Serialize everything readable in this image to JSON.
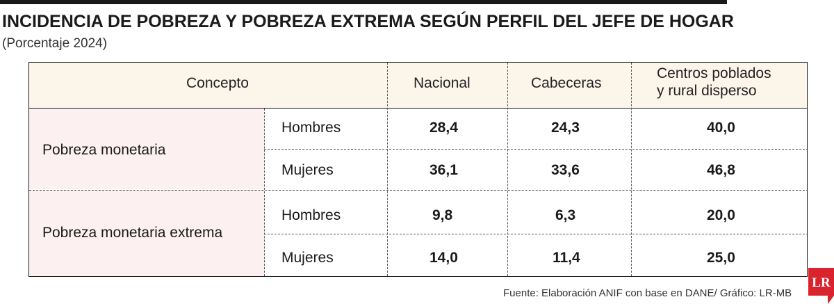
{
  "title": "INCIDENCIA DE POBREZA Y POBREZA EXTREMA SEGÚN PERFIL DEL JEFE DE HOGAR",
  "subtitle": "(Porcentaje 2024)",
  "source": "Fuente: Elaboración ANIF con base en DANE/ Gráfico: LR-MB",
  "logo_text": "LR",
  "colors": {
    "header_bg": "#fbf5ea",
    "category_bg": "#fcf0f0",
    "logo_red": "#d9232d"
  },
  "chart_data": {
    "type": "table",
    "columns": [
      "Concepto",
      "Nacional",
      "Cabeceras",
      "Centros poblados y rural disperso"
    ],
    "column_lines": {
      "col3_line1": "Centros poblados",
      "col3_line2": "y rural disperso"
    },
    "groups": [
      {
        "name": "Pobreza monetaria",
        "rows": [
          {
            "sex": "Hombres",
            "values": [
              "28,4",
              "24,3",
              "40,0"
            ]
          },
          {
            "sex": "Mujeres",
            "values": [
              "36,1",
              "33,6",
              "46,8"
            ]
          }
        ]
      },
      {
        "name": "Pobreza monetaria extrema",
        "rows": [
          {
            "sex": "Hombres",
            "values": [
              "9,8",
              "6,3",
              "20,0"
            ]
          },
          {
            "sex": "Mujeres",
            "values": [
              "14,0",
              "11,4",
              "25,0"
            ]
          }
        ]
      }
    ]
  }
}
